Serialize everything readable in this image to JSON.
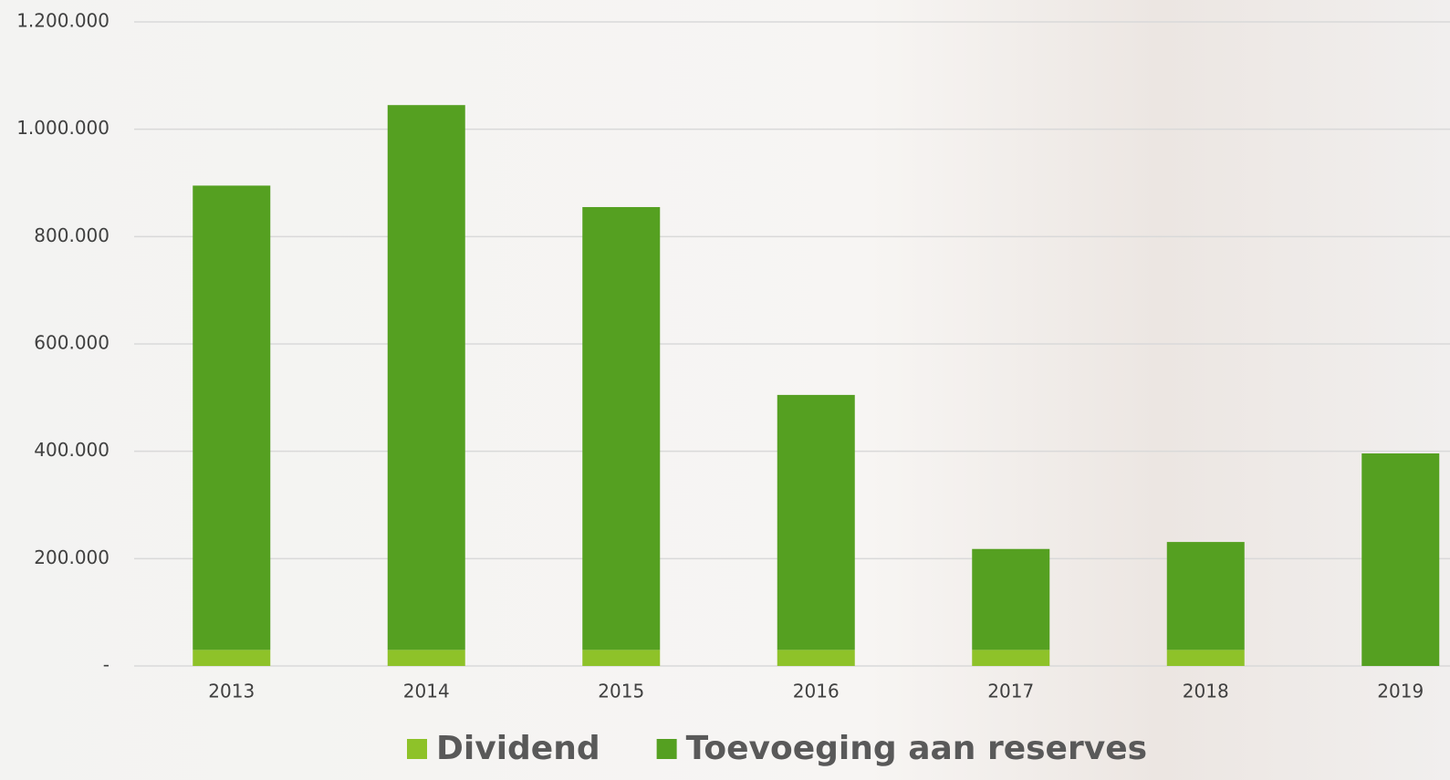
{
  "chart_data": {
    "type": "stacked_bar",
    "categories": [
      "2013",
      "2014",
      "2015",
      "2016",
      "2017",
      "2018",
      "2019"
    ],
    "series": [
      {
        "name": "Dividend",
        "color": "#8ec229",
        "values": [
          30000,
          30000,
          30000,
          30000,
          30000,
          30000,
          0
        ]
      },
      {
        "name": "Toevoeging aan reserves",
        "color": "#55a021",
        "values": [
          865000,
          1015000,
          825000,
          475000,
          188000,
          201000,
          396000
        ]
      }
    ],
    "ylim": [
      0,
      1200000
    ],
    "yticks": [
      {
        "value": 0,
        "label": "-"
      },
      {
        "value": 200000,
        "label": "200.000"
      },
      {
        "value": 400000,
        "label": "400.000"
      },
      {
        "value": 600000,
        "label": "600.000"
      },
      {
        "value": 800000,
        "label": "800.000"
      },
      {
        "value": 1000000,
        "label": "1.000.000"
      },
      {
        "value": 1200000,
        "label": "1.200.000"
      }
    ],
    "grid": true,
    "legend": "bottom"
  }
}
